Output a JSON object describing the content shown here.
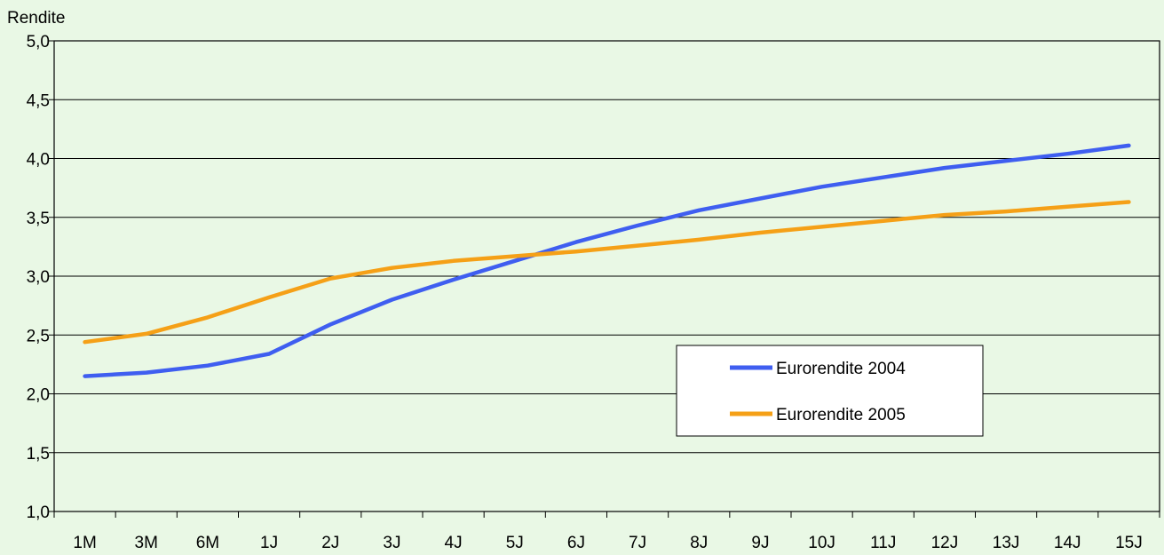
{
  "chart_data": {
    "type": "line",
    "title": "",
    "xlabel": "",
    "ylabel": "Rendite",
    "ylim": [
      1.0,
      5.0
    ],
    "yticks": [
      "1,0",
      "1,5",
      "2,0",
      "2,5",
      "3,0",
      "3,5",
      "4,0",
      "4,5",
      "5,0"
    ],
    "ytick_values": [
      1.0,
      1.5,
      2.0,
      2.5,
      3.0,
      3.5,
      4.0,
      4.5,
      5.0
    ],
    "categories": [
      "1M",
      "3M",
      "6M",
      "1J",
      "2J",
      "3J",
      "4J",
      "5J",
      "6J",
      "7J",
      "8J",
      "9J",
      "10J",
      "11J",
      "12J",
      "13J",
      "14J",
      "15J"
    ],
    "grid": true,
    "legend_position": "lower-right",
    "series": [
      {
        "name": "Eurorendite 2004",
        "color": "#3f5ef0",
        "values": [
          2.15,
          2.18,
          2.24,
          2.34,
          2.59,
          2.8,
          2.97,
          3.13,
          3.29,
          3.43,
          3.56,
          3.66,
          3.76,
          3.84,
          3.92,
          3.98,
          4.04,
          4.11
        ]
      },
      {
        "name": "Eurorendite 2005",
        "color": "#f5a017",
        "values": [
          2.44,
          2.51,
          2.65,
          2.82,
          2.98,
          3.07,
          3.13,
          3.17,
          3.21,
          3.26,
          3.31,
          3.37,
          3.42,
          3.47,
          3.52,
          3.55,
          3.59,
          3.63
        ]
      }
    ]
  }
}
